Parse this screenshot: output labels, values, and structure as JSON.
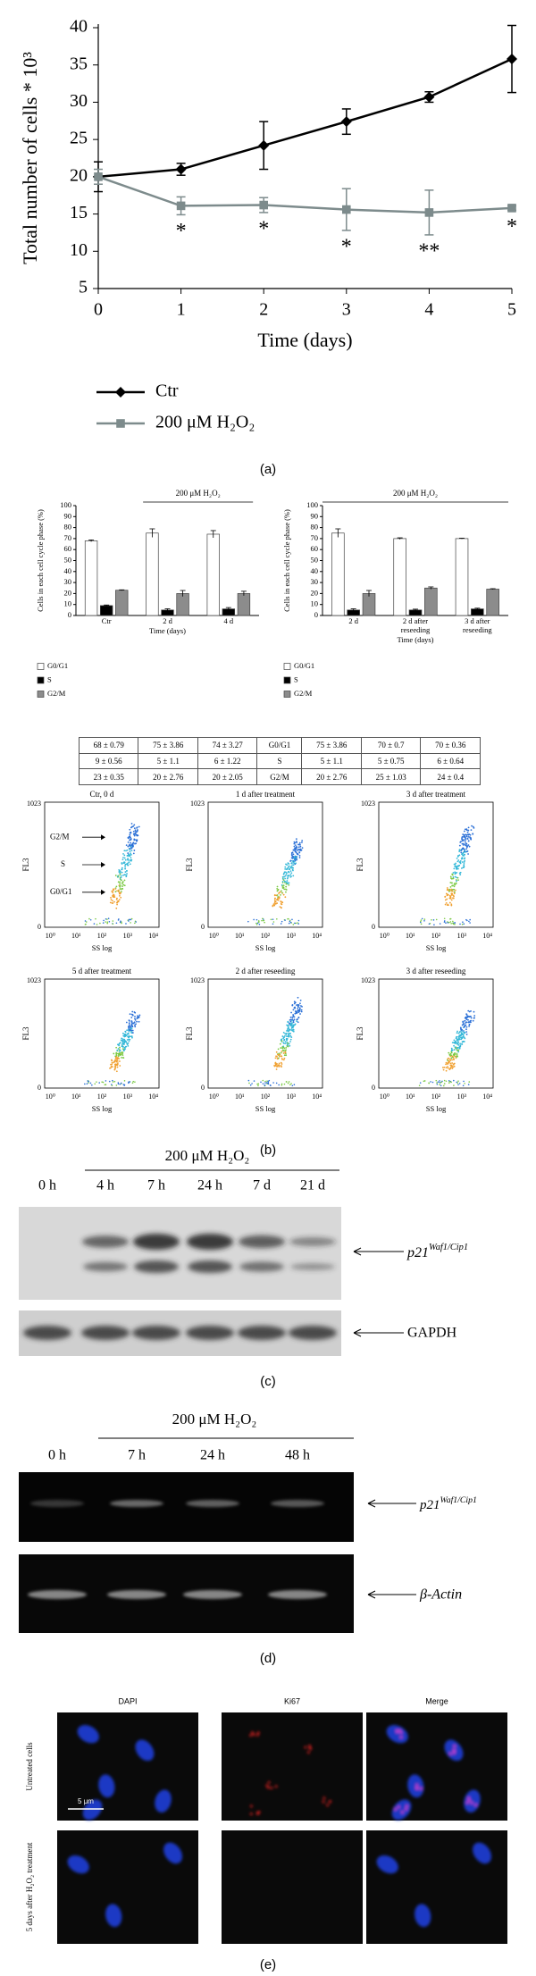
{
  "panel_labels": [
    "(a)",
    "(b)",
    "(c)",
    "(d)",
    "(e)"
  ],
  "chart_data": [
    {
      "type": "line",
      "ylabel": "Total number of cells * 10³",
      "xlabel": "Time (days)",
      "x": [
        0,
        1,
        2,
        3,
        4,
        5
      ],
      "xlim": [
        0,
        5
      ],
      "xticks": [
        0,
        1,
        2,
        3,
        4,
        5
      ],
      "ylim": [
        5,
        40
      ],
      "yticks": [
        5,
        10,
        15,
        20,
        25,
        30,
        35,
        40
      ],
      "series": [
        {
          "name": "Ctr",
          "color": "#000000",
          "marker": "diamond",
          "values": [
            20,
            21,
            24.2,
            27.4,
            30.7,
            35.8
          ],
          "errors": [
            2,
            0.8,
            3.2,
            1.7,
            0.7,
            4.5
          ]
        },
        {
          "name": "200 μM H₂O₂",
          "color": "#7d8b8c",
          "marker": "square",
          "values": [
            20,
            16.1,
            16.2,
            15.6,
            15.2,
            15.8
          ],
          "errors": [
            1,
            1.2,
            1,
            2.8,
            3,
            0.3
          ],
          "annotations": [
            {
              "x": 1,
              "text": "*"
            },
            {
              "x": 2,
              "text": "*"
            },
            {
              "x": 3,
              "text": "*"
            },
            {
              "x": 4,
              "text": "**"
            },
            {
              "x": 5,
              "text": "*"
            }
          ]
        }
      ]
    },
    {
      "type": "bar",
      "ylabel": "Cells in each cell cycle phase (%)",
      "xlabel": "Time (days)",
      "categories": [
        "Ctr",
        "2 d",
        "4 d"
      ],
      "ylim": [
        0,
        100
      ],
      "yticks": [
        0,
        10,
        20,
        30,
        40,
        50,
        60,
        70,
        80,
        90,
        100
      ],
      "bracket": {
        "text": "200 μM H₂O₂",
        "from": 1,
        "to": 2
      },
      "series": [
        {
          "name": "G0/G1",
          "color": "#ffffff",
          "values": [
            68,
            75,
            74
          ],
          "errors": [
            0.79,
            3.86,
            3.27
          ]
        },
        {
          "name": "S",
          "color": "#000000",
          "values": [
            9,
            5,
            6
          ],
          "errors": [
            0.56,
            1.1,
            1.22
          ],
          "annotations": [
            {
              "category": 1,
              "text": "*"
            }
          ]
        },
        {
          "name": "G2/M",
          "color": "#8c8c8c",
          "values": [
            23,
            20,
            20
          ],
          "errors": [
            0.35,
            2.76,
            2.05
          ]
        }
      ]
    },
    {
      "type": "bar",
      "ylabel": "Cells in each cell cycle phase (%)",
      "xlabel": "Time (days)",
      "categories": [
        "2 d",
        "2 d after reseeding",
        "3 d after reseeding"
      ],
      "ylim": [
        0,
        100
      ],
      "yticks": [
        0,
        10,
        20,
        30,
        40,
        50,
        60,
        70,
        80,
        90,
        100
      ],
      "bracket": {
        "text": "200 μM H₂O₂",
        "from": 0,
        "to": 2
      },
      "series": [
        {
          "name": "G0/G1",
          "color": "#ffffff",
          "values": [
            75,
            70,
            70
          ],
          "errors": [
            3.86,
            0.7,
            0.36
          ]
        },
        {
          "name": "S",
          "color": "#000000",
          "values": [
            5,
            5,
            6
          ],
          "errors": [
            1.1,
            0.75,
            0.64
          ]
        },
        {
          "name": "G2/M",
          "color": "#8c8c8c",
          "values": [
            20,
            25,
            24
          ],
          "errors": [
            2.76,
            1.03,
            0.4
          ]
        }
      ]
    }
  ],
  "table": {
    "rows": [
      [
        "68 ± 0.79",
        "75 ± 3.86",
        "74 ± 3.27",
        "G0/G1",
        "75 ± 3.86",
        "70 ± 0.7",
        "70 ± 0.36"
      ],
      [
        "9 ± 0.56",
        "5 ± 1.1",
        "6 ± 1.22",
        "S",
        "5 ± 1.1",
        "5 ± 0.75",
        "6 ± 0.64"
      ],
      [
        "23 ± 0.35",
        "20 ± 2.76",
        "20 ± 2.05",
        "G2/M",
        "20 ± 2.76",
        "25 ± 1.03",
        "24 ± 0.4"
      ]
    ]
  },
  "flow_cytometry": {
    "ylabel": "FL3",
    "xlabel": "SS log",
    "yticks": [
      "1023",
      "0"
    ],
    "xticks": [
      "10⁰",
      "10¹",
      "10²",
      "10³",
      "10⁴"
    ],
    "gates": [
      "G2/M",
      "S",
      "G0/G1"
    ],
    "panels": [
      "Ctr, 0 d",
      "1 d after treatment",
      "3 d after treatment",
      "5 d after treatment",
      "2 d after reseeding",
      "3 d after reseeding"
    ]
  },
  "western_blot": {
    "treatment": "200 μM H₂O₂",
    "lanes": [
      "0 h",
      "4 h",
      "7 h",
      "24 h",
      "7 d",
      "21 d"
    ],
    "bands": [
      {
        "text": "p21",
        "sup": "Waf1/Cip1"
      },
      {
        "text": "GAPDH"
      }
    ]
  },
  "rt_pcr": {
    "treatment": "200 μM H₂O₂",
    "lanes": [
      "0 h",
      "7 h",
      "24 h",
      "48 h"
    ],
    "bands": [
      {
        "text": "p21",
        "sup": "Waf1/Cip1"
      },
      {
        "text": "β-Actin"
      }
    ]
  },
  "immunofluorescence": {
    "channels": [
      "DAPI",
      "Ki67",
      "Merge"
    ],
    "conditions": [
      "Untreated cells",
      "5 days after H₂O₂ treatment"
    ],
    "scale_bar": "5 μm"
  }
}
